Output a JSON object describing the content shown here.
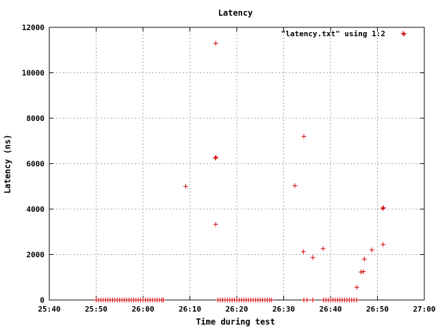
{
  "chart_data": {
    "type": "scatter",
    "title": "Latency",
    "xlabel": "Time during test",
    "ylabel": "Latency (ns)",
    "xlim": [
      1540,
      1620
    ],
    "ylim": [
      0,
      12000
    ],
    "x_ticks": [
      {
        "value": 1540,
        "label": "25:40"
      },
      {
        "value": 1550,
        "label": "25:50"
      },
      {
        "value": 1560,
        "label": "26:00"
      },
      {
        "value": 1570,
        "label": "26:10"
      },
      {
        "value": 1580,
        "label": "26:20"
      },
      {
        "value": 1590,
        "label": "26:30"
      },
      {
        "value": 1600,
        "label": "26:40"
      },
      {
        "value": 1610,
        "label": "26:50"
      },
      {
        "value": 1620,
        "label": "27:00"
      }
    ],
    "y_ticks": [
      {
        "value": 0,
        "label": "0"
      },
      {
        "value": 2000,
        "label": "2000"
      },
      {
        "value": 4000,
        "label": "4000"
      },
      {
        "value": 6000,
        "label": "6000"
      },
      {
        "value": 8000,
        "label": "8000"
      },
      {
        "value": 10000,
        "label": "10000"
      },
      {
        "value": 12000,
        "label": "12000"
      }
    ],
    "grid": true,
    "legend": {
      "position": "top-right",
      "entries": [
        "\"latency.txt\" using 1:2"
      ]
    },
    "series": [
      {
        "name": "\"latency.txt\" using 1:2",
        "color": "#cc0000",
        "marker": "plus",
        "points": [
          [
            1569.1,
            5000
          ],
          [
            1575.5,
            11300
          ],
          [
            1575.4,
            6250
          ],
          [
            1575.6,
            6280
          ],
          [
            1575.5,
            3330
          ],
          [
            1592.4,
            5030
          ],
          [
            1594.3,
            7200
          ],
          [
            1594.2,
            2130
          ],
          [
            1596.2,
            1870
          ],
          [
            1598.4,
            2260
          ],
          [
            1605.6,
            560
          ],
          [
            1606.5,
            1230
          ],
          [
            1607.0,
            1250
          ],
          [
            1607.2,
            1800
          ],
          [
            1608.8,
            2200
          ],
          [
            1611.1,
            4030
          ],
          [
            1611.3,
            4060
          ],
          [
            1611.2,
            2440
          ],
          [
            1615.7,
            11700
          ],
          [
            1594.3,
            0
          ],
          [
            1595.0,
            0
          ],
          [
            1596.2,
            0
          ],
          [
            1550.0,
            0
          ],
          [
            1550.5,
            0
          ],
          [
            1551.0,
            0
          ],
          [
            1551.5,
            0
          ],
          [
            1552.0,
            0
          ],
          [
            1552.5,
            0
          ],
          [
            1553.0,
            0
          ],
          [
            1553.5,
            0
          ],
          [
            1554.0,
            0
          ],
          [
            1554.5,
            0
          ],
          [
            1555.0,
            0
          ],
          [
            1555.5,
            0
          ],
          [
            1556.0,
            0
          ],
          [
            1556.5,
            0
          ],
          [
            1557.0,
            0
          ],
          [
            1557.5,
            0
          ],
          [
            1558.0,
            0
          ],
          [
            1558.5,
            0
          ],
          [
            1559.0,
            0
          ],
          [
            1559.5,
            0
          ],
          [
            1560.0,
            0
          ],
          [
            1560.5,
            0
          ],
          [
            1561.0,
            0
          ],
          [
            1561.5,
            0
          ],
          [
            1562.0,
            0
          ],
          [
            1562.5,
            0
          ],
          [
            1563.0,
            0
          ],
          [
            1563.5,
            0
          ],
          [
            1564.0,
            0
          ],
          [
            1564.3,
            0
          ],
          [
            1576.0,
            0
          ],
          [
            1576.5,
            0
          ],
          [
            1577.0,
            0
          ],
          [
            1577.5,
            0
          ],
          [
            1578.0,
            0
          ],
          [
            1578.5,
            0
          ],
          [
            1579.0,
            0
          ],
          [
            1579.5,
            0
          ],
          [
            1580.0,
            0
          ],
          [
            1580.5,
            0
          ],
          [
            1581.0,
            0
          ],
          [
            1581.5,
            0
          ],
          [
            1582.0,
            0
          ],
          [
            1582.5,
            0
          ],
          [
            1583.0,
            0
          ],
          [
            1583.5,
            0
          ],
          [
            1584.0,
            0
          ],
          [
            1584.5,
            0
          ],
          [
            1585.0,
            0
          ],
          [
            1585.5,
            0
          ],
          [
            1586.0,
            0
          ],
          [
            1586.5,
            0
          ],
          [
            1587.0,
            0
          ],
          [
            1587.4,
            0
          ],
          [
            1598.5,
            0
          ],
          [
            1599.0,
            0
          ],
          [
            1599.5,
            0
          ],
          [
            1600.0,
            0
          ],
          [
            1600.5,
            0
          ],
          [
            1601.0,
            0
          ],
          [
            1601.5,
            0
          ],
          [
            1602.0,
            0
          ],
          [
            1602.5,
            0
          ],
          [
            1603.0,
            0
          ],
          [
            1603.5,
            0
          ],
          [
            1604.0,
            0
          ],
          [
            1604.5,
            0
          ],
          [
            1605.0,
            0
          ],
          [
            1605.6,
            0
          ]
        ]
      }
    ]
  }
}
